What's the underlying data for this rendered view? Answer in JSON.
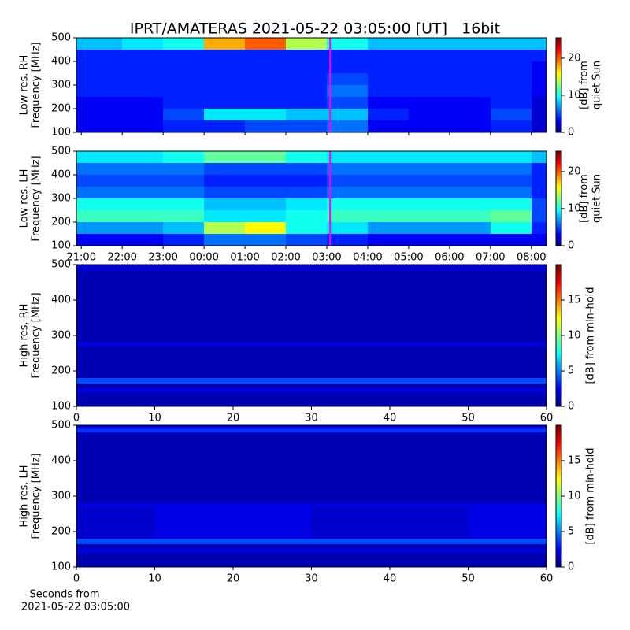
{
  "chart_data": [
    {
      "type": "heatmap",
      "title": "IPRT/AMATERAS 2021-05-22 03:05:00 [UT]   16bit",
      "ylabel": [
        "Low res. RH",
        "Frequency [MHz]"
      ],
      "xlim": [
        20.88,
        32.37
      ],
      "xticks": [
        21,
        22,
        23,
        24,
        25,
        26,
        27,
        28,
        29,
        30,
        31,
        32
      ],
      "ylim": [
        100,
        500
      ],
      "yticks": [
        100,
        200,
        300,
        400,
        500
      ],
      "xbins": [
        20.88,
        22,
        23,
        24,
        25,
        26,
        27,
        28,
        29,
        30,
        31,
        32,
        32.37
      ],
      "ybins": [
        100,
        150,
        200,
        250,
        300,
        350,
        400,
        450,
        500
      ],
      "z": [
        [
          3,
          3,
          4,
          4,
          5,
          5,
          6,
          3,
          3,
          3,
          4,
          2
        ],
        [
          3,
          3,
          5,
          9,
          9,
          8,
          8,
          4,
          3,
          3,
          5,
          2
        ],
        [
          3,
          3,
          4,
          4,
          4,
          4,
          5,
          3,
          3,
          3,
          4,
          2
        ],
        [
          4,
          4,
          4,
          4,
          4,
          4,
          6,
          4,
          4,
          4,
          4,
          3
        ],
        [
          4,
          4,
          4,
          4,
          4,
          4,
          5,
          4,
          4,
          4,
          4,
          3
        ],
        [
          4,
          4,
          4,
          4,
          4,
          4,
          4,
          4,
          4,
          4,
          4,
          3
        ],
        [
          4,
          4,
          4,
          4,
          4,
          4,
          4,
          4,
          4,
          4,
          4,
          4
        ],
        [
          8,
          9,
          10,
          18,
          20,
          14,
          10,
          8,
          8,
          8,
          8,
          8
        ]
      ],
      "colormap": "jet",
      "clim": [
        0,
        25.5
      ],
      "cticks": [
        0,
        10,
        20
      ],
      "colorbar_label": [
        "[dB] from",
        "quiet Sun"
      ],
      "marker_x": 27.08,
      "marker_color": "#ff00ff"
    },
    {
      "type": "heatmap",
      "ylabel": [
        "Low res. LH",
        "Frequency [MHz]"
      ],
      "xlim": [
        20.88,
        32.37
      ],
      "xticks": [
        {
          "value": 21,
          "label": "21:00"
        },
        {
          "value": 22,
          "label": "22:00"
        },
        {
          "value": 23,
          "label": "23:00"
        },
        {
          "value": 24,
          "label": "00:00"
        },
        {
          "value": 25,
          "label": "01:00"
        },
        {
          "value": 26,
          "label": "02:00"
        },
        {
          "value": 27,
          "label": "03:00"
        },
        {
          "value": 28,
          "label": "04:00"
        },
        {
          "value": 29,
          "label": "05:00"
        },
        {
          "value": 30,
          "label": "06:00"
        },
        {
          "value": 31,
          "label": "07:00"
        },
        {
          "value": 32,
          "label": "08:00"
        }
      ],
      "ylim": [
        100,
        500
      ],
      "yticks": [
        100,
        200,
        300,
        400,
        500
      ],
      "xbins": [
        20.88,
        22,
        23,
        24,
        25,
        26,
        27,
        28,
        29,
        30,
        31,
        32,
        32.37
      ],
      "ybins": [
        100,
        150,
        200,
        250,
        300,
        350,
        400,
        450,
        500
      ],
      "z": [
        [
          3,
          3,
          4,
          6,
          6,
          5,
          4,
          3,
          3,
          3,
          3,
          3
        ],
        [
          7,
          7,
          8,
          14,
          16,
          10,
          9,
          7,
          7,
          7,
          10,
          4
        ],
        [
          11,
          11,
          11,
          9,
          9,
          10,
          11,
          11,
          11,
          11,
          12,
          5
        ],
        [
          10,
          10,
          10,
          8,
          8,
          9,
          10,
          10,
          10,
          10,
          10,
          5
        ],
        [
          6,
          6,
          6,
          5,
          5,
          5,
          6,
          6,
          6,
          6,
          6,
          4
        ],
        [
          5,
          5,
          5,
          4,
          4,
          4,
          5,
          5,
          5,
          5,
          5,
          4
        ],
        [
          6,
          6,
          6,
          5,
          5,
          5,
          6,
          6,
          6,
          6,
          6,
          4
        ],
        [
          9,
          9,
          10,
          12,
          12,
          10,
          9,
          9,
          9,
          9,
          9,
          8
        ]
      ],
      "colormap": "jet",
      "clim": [
        0,
        25.5
      ],
      "cticks": [
        0,
        10,
        20
      ],
      "colorbar_label": [
        "[dB] from",
        "quiet Sun"
      ],
      "marker_x": 27.08,
      "marker_color": "#ff00ff"
    },
    {
      "type": "heatmap",
      "ylabel": [
        "High res. RH",
        "Frequency [MHz]"
      ],
      "xlim": [
        0,
        60
      ],
      "xticks": [
        0,
        10,
        20,
        30,
        40,
        50,
        60
      ],
      "ylim": [
        100,
        500
      ],
      "yticks": [
        100,
        200,
        300,
        400,
        500
      ],
      "xbins": [
        0,
        10,
        20,
        30,
        40,
        50,
        60
      ],
      "ybins": [
        100,
        140,
        150,
        165,
        180,
        270,
        280,
        480,
        490,
        500
      ],
      "z": [
        [
          1,
          1,
          1,
          1,
          1,
          1
        ],
        [
          2,
          2,
          2,
          2,
          2,
          2
        ],
        [
          1,
          1,
          1,
          1,
          1,
          1
        ],
        [
          4,
          4,
          4,
          4,
          4,
          4
        ],
        [
          1,
          1,
          1,
          1,
          1,
          1
        ],
        [
          2,
          2,
          2,
          2,
          2,
          2
        ],
        [
          1,
          1,
          1,
          1,
          1,
          1
        ],
        [
          1.5,
          1.5,
          1.5,
          1.5,
          1.5,
          1.5
        ],
        [
          2,
          2,
          2,
          2,
          2,
          2
        ]
      ],
      "colormap": "jet",
      "clim": [
        0,
        20
      ],
      "cticks": [
        0,
        5,
        10,
        15
      ],
      "colorbar_label": [
        "[dB] from min-hold"
      ]
    },
    {
      "type": "heatmap",
      "ylabel": [
        "High res. LH",
        "Frequency [MHz]"
      ],
      "xlim": [
        0,
        60
      ],
      "xticks": [
        0,
        10,
        20,
        30,
        40,
        50,
        60
      ],
      "xlabel": [
        "Seconds from",
        "2021-05-22 03:05:00"
      ],
      "ylim": [
        100,
        500
      ],
      "yticks": [
        100,
        200,
        300,
        400,
        500
      ],
      "xbins": [
        0,
        10,
        20,
        30,
        40,
        50,
        60
      ],
      "ybins": [
        100,
        140,
        150,
        165,
        180,
        270,
        280,
        480,
        490,
        500
      ],
      "z": [
        [
          1,
          1,
          1,
          1,
          1,
          1
        ],
        [
          2,
          2,
          2,
          2,
          2,
          2
        ],
        [
          1,
          1,
          1,
          1,
          1,
          1
        ],
        [
          4,
          4,
          4,
          4,
          4,
          4
        ],
        [
          1.5,
          2,
          2,
          1.5,
          1.5,
          2
        ],
        [
          2,
          2,
          2,
          2,
          2,
          2
        ],
        [
          1,
          1,
          1,
          1,
          1,
          1
        ],
        [
          3.5,
          3.5,
          3.5,
          3.5,
          3.5,
          3.5
        ],
        [
          2,
          2,
          2,
          2,
          2,
          2
        ]
      ],
      "colormap": "jet",
      "clim": [
        0,
        20
      ],
      "cticks": [
        0,
        5,
        10,
        15
      ],
      "colorbar_label": [
        "[dB] from min-hold"
      ]
    }
  ]
}
